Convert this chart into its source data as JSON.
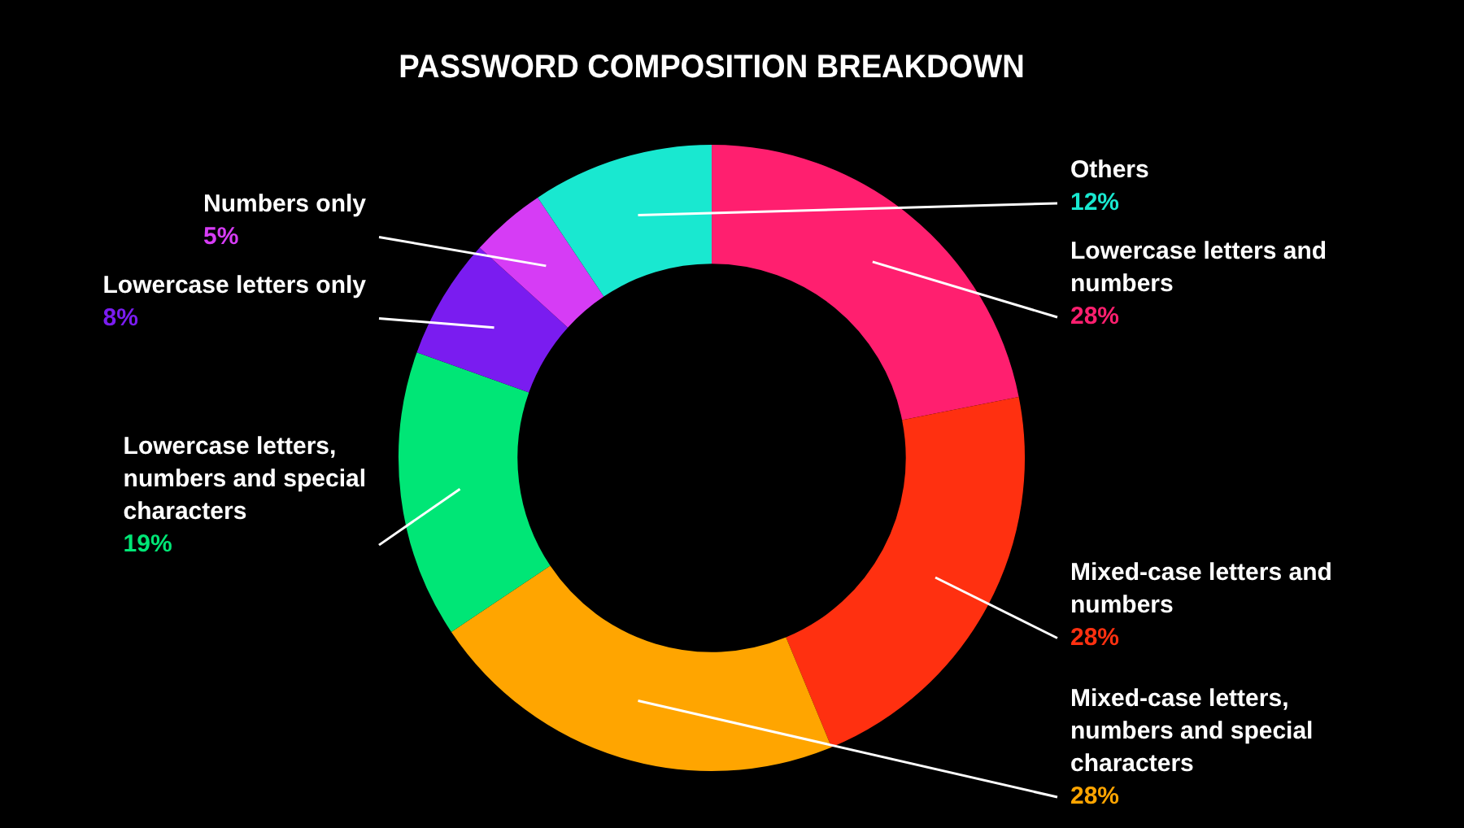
{
  "chart_data": {
    "type": "donut",
    "title": "PASSWORD COMPOSITION BREAKDOWN",
    "categories": [
      "Lowercase letters and numbers",
      "Mixed-case letters and numbers",
      "Mixed-case letters, numbers and special characters",
      "Lowercase letters, numbers and special characters",
      "Lowercase letters only",
      "Numbers only",
      "Others"
    ],
    "values": [
      28,
      28,
      28,
      19,
      8,
      5,
      12
    ],
    "value_labels": [
      "28%",
      "28%",
      "28%",
      "19%",
      "8%",
      "5%",
      "12%"
    ],
    "colors": [
      "#ff1f6f",
      "#ff3010",
      "#ffa500",
      "#00e676",
      "#7a1cf0",
      "#d63cf5",
      "#19e8d0"
    ],
    "legend": false
  }
}
